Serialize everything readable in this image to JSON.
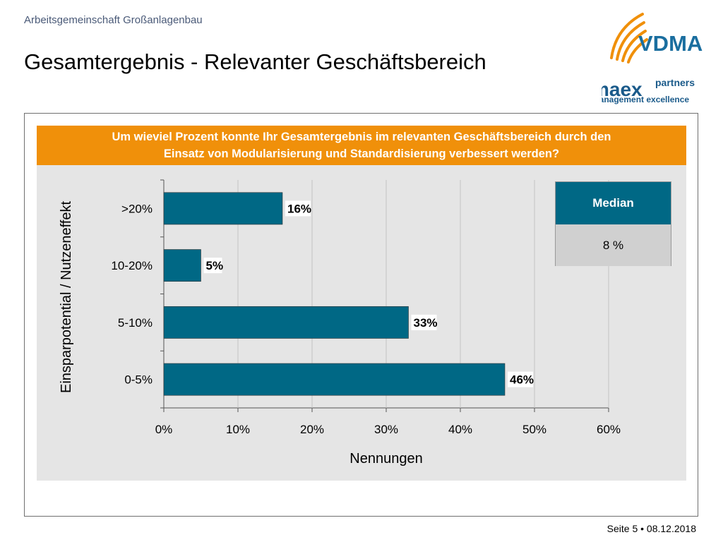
{
  "header": {
    "org": "Arbeitsgemeinschaft Großanlagenbau",
    "title": "Gesamtergebnis - Relevanter Geschäftsbereich"
  },
  "logos": {
    "vdma": "VDMA",
    "maex": "maex",
    "partners": "partners",
    "tagline": "management excellence"
  },
  "question": {
    "line1": "Um wieviel Prozent konnte Ihr Gesamtergebnis im relevanten Geschäftsbereich durch den",
    "line2": "Einsatz von Modularisierung und Standardisierung verbessert werden?"
  },
  "median": {
    "label": "Median",
    "value": "8 %"
  },
  "colors": {
    "bar": "#006885",
    "accent": "#f0900a",
    "vdma_blue": "#1a6e9f",
    "maex_blue": "#1a5a8a"
  },
  "chart_data": {
    "type": "bar",
    "orientation": "horizontal",
    "categories": [
      ">20%",
      "10-20%",
      "5-10%",
      "0-5%"
    ],
    "values": [
      16,
      5,
      33,
      46
    ],
    "data_labels": [
      "16%",
      "5%",
      "33%",
      "46%"
    ],
    "xlabel": "Nennungen",
    "ylabel": "Einsparpotential / Nutzeneffekt",
    "xlim": [
      0,
      60
    ],
    "xticks": [
      "0%",
      "10%",
      "20%",
      "30%",
      "40%",
      "50%",
      "60%"
    ],
    "grid": true
  },
  "footer": {
    "text": "Seite 5 • 08.12.2018"
  }
}
